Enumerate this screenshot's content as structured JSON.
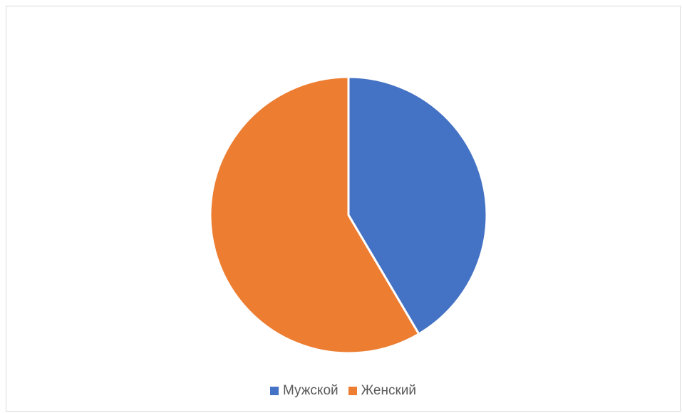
{
  "chart_data": {
    "type": "pie",
    "title": "",
    "categories": [
      "Мужской",
      "Женский"
    ],
    "values": [
      41.5,
      58.5
    ],
    "unit": "%",
    "colors": [
      "#4472c4",
      "#ed7d31"
    ],
    "legend_position": "bottom",
    "start_angle_deg": 0,
    "direction": "clockwise"
  }
}
